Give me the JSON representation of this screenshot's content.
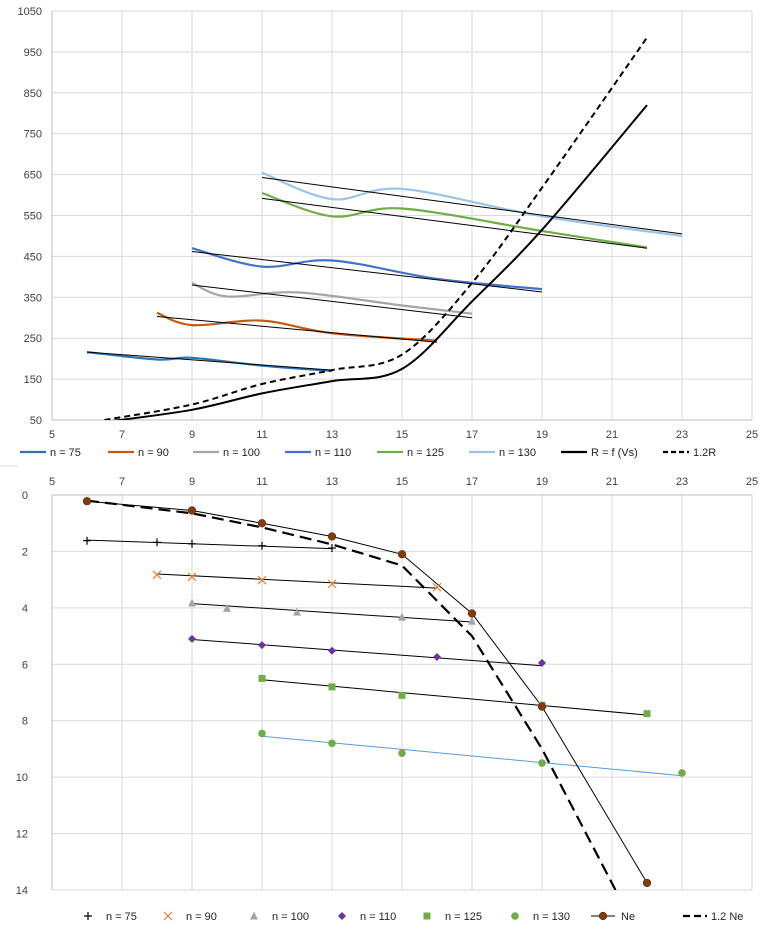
{
  "chart_data": [
    {
      "type": "line",
      "title": "",
      "xlabel": "",
      "ylabel": "",
      "xlim": [
        5,
        25
      ],
      "ylim": [
        50,
        1050
      ],
      "x_ticks": [
        "5",
        "7",
        "9",
        "11",
        "13",
        "15",
        "17",
        "19",
        "21",
        "23",
        "25"
      ],
      "y_ticks": [
        "50",
        "150",
        "250",
        "350",
        "450",
        "550",
        "650",
        "750",
        "850",
        "950",
        "1050"
      ],
      "grid": true,
      "legend_position": "bottom",
      "series": [
        {
          "name": "n = 75",
          "color": "#2e75b6",
          "smooth": true,
          "x": [
            6,
            8,
            9,
            11,
            13
          ],
          "y": [
            216,
            198,
            202,
            183,
            170
          ]
        },
        {
          "name": "n = 90",
          "color": "#c55a11",
          "smooth": true,
          "x": [
            8,
            9,
            11,
            13,
            16
          ],
          "y": [
            312,
            282,
            293,
            262,
            244
          ]
        },
        {
          "name": "n = 100",
          "color": "#a5a5a5",
          "smooth": true,
          "x": [
            9,
            10,
            12,
            15,
            17
          ],
          "y": [
            385,
            352,
            362,
            330,
            310
          ]
        },
        {
          "name": "n = 110",
          "color": "#4472c4",
          "smooth": true,
          "x": [
            9,
            11,
            13,
            16,
            19
          ],
          "y": [
            470,
            425,
            440,
            395,
            370
          ]
        },
        {
          "name": "n = 125",
          "color": "#70ad47",
          "smooth": true,
          "x": [
            11,
            13,
            15,
            19,
            22
          ],
          "y": [
            605,
            548,
            567,
            512,
            472
          ]
        },
        {
          "name": "n = 130",
          "color": "#9dc3e6",
          "smooth": true,
          "x": [
            11,
            13,
            15,
            19,
            23
          ],
          "y": [
            655,
            590,
            615,
            548,
            500
          ]
        },
        {
          "name": "R = f (Vs)",
          "color": "#000000",
          "dash": "solid",
          "smooth": true,
          "x": [
            6.5,
            9,
            11,
            13,
            15,
            17,
            19,
            22
          ],
          "y": [
            45,
            75,
            115,
            145,
            175,
            340,
            515,
            820
          ]
        },
        {
          "name": "1.2R",
          "color": "#000000",
          "dash": "dashed",
          "smooth": true,
          "x": [
            6.5,
            9,
            11,
            13,
            15,
            17,
            19,
            22
          ],
          "y": [
            50,
            88,
            138,
            172,
            210,
            385,
            618,
            985
          ]
        }
      ],
      "trendlines": [
        {
          "x": [
            6,
            13
          ],
          "y": [
            216,
            172
          ],
          "color": "#000000"
        },
        {
          "x": [
            8,
            16
          ],
          "y": [
            303,
            240
          ],
          "color": "#000000"
        },
        {
          "x": [
            9,
            17
          ],
          "y": [
            380,
            300
          ],
          "color": "#000000"
        },
        {
          "x": [
            9,
            19
          ],
          "y": [
            462,
            363
          ],
          "color": "#000000"
        },
        {
          "x": [
            11,
            22
          ],
          "y": [
            592,
            470
          ],
          "color": "#000000"
        },
        {
          "x": [
            11,
            23
          ],
          "y": [
            643,
            505
          ],
          "color": "#000000"
        }
      ]
    },
    {
      "type": "scatter",
      "title": "",
      "xlabel": "",
      "ylabel": "",
      "xlim": [
        5,
        25
      ],
      "ylim": [
        0,
        14
      ],
      "y_reversed": true,
      "x_axis_position": "top",
      "x_ticks": [
        "5",
        "7",
        "9",
        "11",
        "13",
        "15",
        "17",
        "19",
        "21",
        "23",
        "25"
      ],
      "y_ticks": [
        "0",
        "2",
        "4",
        "6",
        "8",
        "10",
        "12",
        "14"
      ],
      "grid": true,
      "legend_position": "bottom",
      "series": [
        {
          "name": "n = 75",
          "marker": "plus",
          "color": "#000000",
          "x": [
            6,
            8,
            9,
            11,
            13
          ],
          "y": [
            1.62,
            1.68,
            1.73,
            1.8,
            1.88
          ],
          "trend": {
            "x": [
              6,
              13
            ],
            "y": [
              1.6,
              1.9
            ],
            "color": "#000000"
          }
        },
        {
          "name": "n = 90",
          "marker": "x",
          "color": "#ed7d31",
          "x": [
            8,
            9,
            11,
            13,
            16
          ],
          "y": [
            2.83,
            2.9,
            3.02,
            3.15,
            3.27
          ],
          "trend": {
            "x": [
              8,
              16
            ],
            "y": [
              2.8,
              3.3
            ],
            "color": "#000000"
          }
        },
        {
          "name": "n = 100",
          "marker": "triangle",
          "color": "#a5a5a5",
          "x": [
            9,
            10,
            12,
            15,
            17
          ],
          "y": [
            3.83,
            4.02,
            4.15,
            4.33,
            4.47
          ],
          "trend": {
            "x": [
              9,
              17
            ],
            "y": [
              3.85,
              4.5
            ],
            "color": "#000000"
          }
        },
        {
          "name": "n = 110",
          "marker": "diamond",
          "color": "#7030a0",
          "x": [
            9,
            11,
            13,
            16,
            19
          ],
          "y": [
            5.1,
            5.32,
            5.52,
            5.74,
            5.95
          ],
          "trend": {
            "x": [
              9,
              19
            ],
            "y": [
              5.12,
              6.05
            ],
            "color": "#000000"
          }
        },
        {
          "name": "n = 125",
          "marker": "square",
          "color": "#70ad47",
          "x": [
            11,
            13,
            15,
            19,
            22
          ],
          "y": [
            6.5,
            6.8,
            7.1,
            7.45,
            7.75
          ],
          "trend": {
            "x": [
              11,
              22
            ],
            "y": [
              6.55,
              7.8
            ],
            "color": "#000000"
          }
        },
        {
          "name": "n = 130",
          "marker": "circle",
          "color": "#70ad47",
          "x": [
            11,
            13,
            15,
            19,
            23
          ],
          "y": [
            8.45,
            8.8,
            9.15,
            9.5,
            9.85
          ],
          "trend": {
            "x": [
              11,
              23
            ],
            "y": [
              8.55,
              9.95
            ],
            "color": "#5b9bd5"
          }
        },
        {
          "name": "Ne",
          "marker": "circle",
          "color": "#843c0c",
          "line": "solid",
          "x": [
            6,
            9,
            11,
            13,
            15,
            17,
            19,
            22
          ],
          "y": [
            0.22,
            0.55,
            1.0,
            1.47,
            2.1,
            4.2,
            7.5,
            13.75
          ]
        },
        {
          "name": "1.2 Ne",
          "marker": "none",
          "color": "#000000",
          "line": "dashed",
          "x": [
            6,
            9,
            11,
            13,
            15,
            17,
            19,
            21.1
          ],
          "y": [
            0.2,
            0.65,
            1.15,
            1.75,
            2.5,
            5.0,
            9.0,
            14.0
          ]
        }
      ]
    }
  ]
}
